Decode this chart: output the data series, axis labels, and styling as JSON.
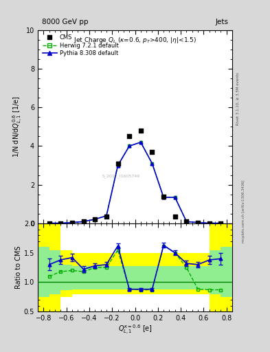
{
  "title_top_left": "8000 GeV pp",
  "title_top_right": "Jets",
  "plot_title": "Jet Charge $Q_L$ ($\\kappa$=0.6, $p_T$>400, |$\\eta$|<1.5)",
  "ylabel_main": "1/N dN/d$Q^{0.6}_{L,1}$ [1/e]",
  "ylabel_ratio": "Ratio to CMS",
  "xlabel": "$Q^{\\mathrm{kappa=0.6}}_{L,1}$ [e]",
  "right_label_top": "Rivet 3.1.10, ≥ 3.5M events",
  "right_label_bot": "mcplots.cern.ch [arXiv:1306.3436]",
  "watermark": "S_2017_I1605749",
  "x_data": [
    -0.75,
    -0.65,
    -0.55,
    -0.45,
    -0.35,
    -0.25,
    -0.15,
    -0.05,
    0.05,
    0.15,
    0.25,
    0.35,
    0.45,
    0.55,
    0.65,
    0.75
  ],
  "cms_y": [
    0.02,
    0.02,
    0.05,
    0.1,
    0.22,
    0.35,
    3.1,
    4.5,
    4.8,
    3.7,
    1.4,
    0.35,
    0.1,
    0.05,
    0.02,
    0.02
  ],
  "herwig_y": [
    0.02,
    0.02,
    0.05,
    0.1,
    0.22,
    0.4,
    3.0,
    4.0,
    4.2,
    3.1,
    1.35,
    1.35,
    0.1,
    0.05,
    0.02,
    0.02
  ],
  "pythia_y": [
    0.02,
    0.02,
    0.05,
    0.1,
    0.22,
    0.4,
    3.0,
    4.0,
    4.2,
    3.1,
    1.35,
    1.35,
    0.1,
    0.05,
    0.02,
    0.02
  ],
  "ratio_pythia": [
    1.3,
    1.38,
    1.42,
    1.22,
    1.28,
    1.3,
    1.62,
    0.88,
    0.88,
    0.88,
    1.63,
    1.5,
    1.32,
    1.3,
    1.38,
    1.4
  ],
  "ratio_herwig": [
    1.1,
    1.18,
    1.2,
    1.18,
    1.25,
    1.25,
    1.55,
    0.88,
    0.87,
    0.87,
    1.62,
    1.5,
    1.25,
    0.88,
    0.87,
    0.87
  ],
  "yerr_pythia": [
    0.1,
    0.07,
    0.06,
    0.05,
    0.04,
    0.04,
    0.04,
    0.02,
    0.02,
    0.02,
    0.04,
    0.04,
    0.05,
    0.05,
    0.07,
    0.1
  ],
  "cms_color": "#000000",
  "herwig_color": "#00aa00",
  "pythia_color": "#0000cc",
  "ylim_main": [
    0,
    10
  ],
  "ylim_ratio": [
    0.5,
    2.0
  ],
  "xlim": [
    -0.85,
    0.85
  ],
  "yticks_main": [
    0,
    2,
    4,
    6,
    8,
    10
  ],
  "yticks_ratio": [
    0.5,
    1.0,
    1.5,
    2.0
  ],
  "band_edges": [
    -0.85,
    -0.75,
    -0.65,
    -0.55,
    -0.45,
    -0.35,
    -0.25,
    -0.15,
    -0.05,
    0.05,
    0.15,
    0.25,
    0.35,
    0.45,
    0.55,
    0.65,
    0.75,
    0.85
  ],
  "yellow_lo": [
    0.45,
    0.45,
    0.75,
    0.8,
    0.8,
    0.8,
    0.8,
    0.8,
    0.8,
    0.8,
    0.8,
    0.8,
    0.8,
    0.8,
    0.8,
    0.45,
    0.45
  ],
  "yellow_hi": [
    2.0,
    2.0,
    1.55,
    1.5,
    1.5,
    1.5,
    1.5,
    1.5,
    1.5,
    1.5,
    1.5,
    1.5,
    1.5,
    1.5,
    1.5,
    2.0,
    2.0
  ],
  "green_lo": [
    0.75,
    0.8,
    0.87,
    0.88,
    0.88,
    0.88,
    0.88,
    0.88,
    0.88,
    0.88,
    0.88,
    0.88,
    0.88,
    0.88,
    0.88,
    0.8,
    0.75
  ],
  "green_hi": [
    1.6,
    1.55,
    1.3,
    1.28,
    1.28,
    1.28,
    1.28,
    1.28,
    1.28,
    1.28,
    1.28,
    1.28,
    1.28,
    1.28,
    1.28,
    1.55,
    1.6
  ]
}
